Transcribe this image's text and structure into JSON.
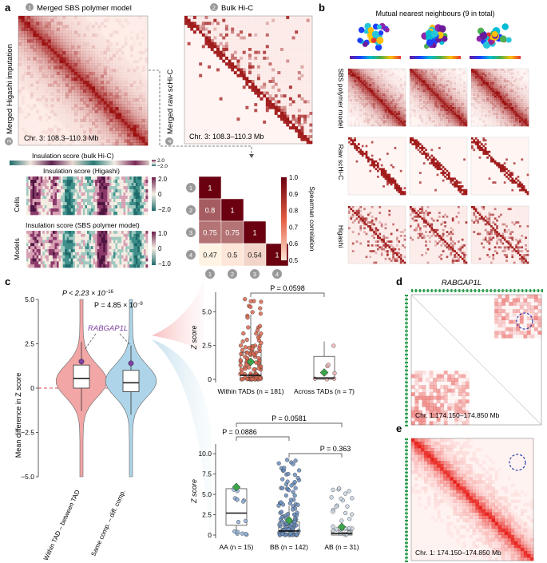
{
  "panels": {
    "a": {
      "letter": "a",
      "titles": {
        "sbs": "Merged SBS polymer model",
        "hic": "Bulk Hi-C",
        "higashi": "Merged Higashi imputation",
        "schic": "Merged raw scHi-C"
      },
      "badges": {
        "sbs": "1",
        "hic": "2",
        "higashi": "3",
        "schic": "4"
      },
      "coord_label": "Chr. 3: 108.3–110.3 Mb",
      "insulation_bulk": "Insulation score (bulk Hi-C)",
      "insulation_higashi": "Insulation score (Higashi)",
      "insulation_sbs": "Insulation score (SBS polymer model)",
      "cells_label": "Cells",
      "models_label": "Models",
      "bulk_cbar": [
        "2.0",
        "−2.0"
      ],
      "higashi_cbar": [
        "2.0",
        "0",
        "−2.0"
      ],
      "sbs_cbar": [
        "1.0",
        "0",
        "−1.0"
      ],
      "corr_matrix": {
        "labels": [
          "1",
          "2",
          "3",
          "4"
        ],
        "rows": [
          [
            "1"
          ],
          [
            "0.8",
            "1"
          ],
          [
            "0.75",
            "0.75",
            "1"
          ],
          [
            "0.47",
            "0.5",
            "0.54",
            "1"
          ]
        ],
        "values": [
          [
            1
          ],
          [
            0.8,
            1
          ],
          [
            0.75,
            0.75,
            1
          ],
          [
            0.47,
            0.5,
            0.54,
            1
          ]
        ],
        "cbar_ticks": [
          "1.0",
          "0.9",
          "0.8",
          "0.7",
          "0.6",
          "0.5"
        ],
        "cbar_title": "Spearman correlation"
      }
    },
    "b": {
      "letter": "b",
      "title": "Mutual nearest neighbours (9 in total)",
      "rows": [
        "SBS polymer model",
        "Raw scHi-C",
        "Higashi"
      ]
    },
    "c": {
      "letter": "c",
      "violin_ylabel": "Mean difference in Z score",
      "violin_yticks": [
        "5.0",
        "2.5",
        "0",
        "−2.5",
        "−5.0"
      ],
      "violin_xlabels": [
        "Within TAD – between TAD",
        "Same comp. – diff. comp."
      ],
      "p_within": "P < 2.23 × 10",
      "p_within_exp": "−16",
      "p_same": "P = 4.85 × 10",
      "p_same_exp": "−9",
      "gene": "RABGAP1L",
      "tad_plot": {
        "ylabel": "Z score",
        "yticks": [
          "5.0",
          "2.5",
          "0"
        ],
        "categories": [
          "Within TADs (n = 181)",
          "Across TADs (n = 7)"
        ],
        "p": "P = 0.0598"
      },
      "comp_plot": {
        "ylabel": "Z score",
        "yticks": [
          "10.0",
          "7.5",
          "5.0",
          "2.5",
          "0"
        ],
        "categories": [
          "AA (n = 15)",
          "BB (n = 142)",
          "AB (n = 31)"
        ],
        "p_aa_bb": "P = 0.0886",
        "p_aa_ab": "P = 0.0581",
        "p_bb_ab": "P = 0.363"
      }
    },
    "d": {
      "letter": "d",
      "gene": "RABGAP1L",
      "coord": "Chr. 1:174.150–174.850 Mb"
    },
    "e": {
      "letter": "e",
      "coord": "Chr. 1: 174.150–174.850 Mb"
    }
  },
  "colors": {
    "hic_dark": "#8b0000",
    "hic_light": "#fbe3df",
    "violin_red": "#f0a0a0",
    "violin_blue": "#a9d1e6",
    "accent_purple": "#7b3fa0",
    "diamond_green": "#3da34a",
    "gene_green": "#2a9a4a"
  }
}
